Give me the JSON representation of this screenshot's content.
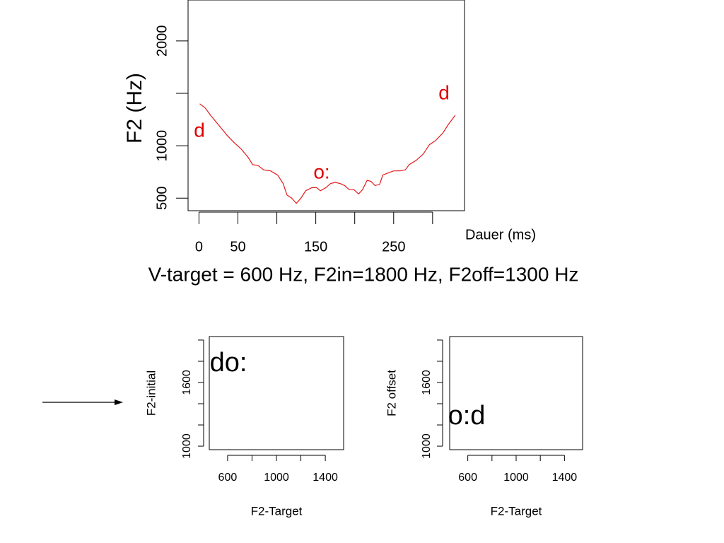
{
  "chart_data": [
    {
      "type": "line",
      "ylabel": "F2 (Hz)",
      "xlabel": "Dauer (ms)",
      "caption": "V-target = 600 Hz, F2in=1800 Hz, F2off=1300 Hz",
      "xlim": [
        -14,
        341
      ],
      "ylim": [
        380,
        2390
      ],
      "xticks": [
        0,
        50,
        {
          "value": 100,
          "label": null
        },
        150,
        {
          "value": 200,
          "label": null
        },
        250,
        {
          "value": 300,
          "label": null
        }
      ],
      "yticks": [
        500,
        1000,
        {
          "value": 1500,
          "label": null
        },
        2000
      ],
      "x": [
        1,
        8,
        15,
        26,
        36,
        45,
        54,
        63,
        69,
        76,
        83,
        92,
        101,
        108,
        113,
        119,
        125,
        131,
        137,
        145,
        151,
        156,
        163,
        169,
        175,
        181,
        187,
        193,
        199,
        205,
        210,
        216,
        221,
        226,
        232,
        236,
        243,
        250,
        258,
        265,
        270,
        279,
        288,
        296,
        304,
        313,
        320,
        329
      ],
      "series": [
        {
          "color": "#e31a1c",
          "values": [
            1400,
            1360,
            1290,
            1190,
            1100,
            1030,
            970,
            890,
            820,
            810,
            770,
            760,
            720,
            640,
            530,
            500,
            450,
            500,
            570,
            600,
            600,
            570,
            600,
            640,
            650,
            640,
            620,
            580,
            580,
            540,
            580,
            670,
            660,
            620,
            630,
            720,
            740,
            760,
            760,
            770,
            820,
            860,
            920,
            1010,
            1050,
            1120,
            1200,
            1290
          ]
        }
      ],
      "annotation_color": "#e00000",
      "annotations": [
        "d",
        "d",
        "o:"
      ]
    },
    {
      "type": "scatter",
      "xlabel": "F2-Target",
      "ylabel": "F2-initial",
      "xlim": [
        450,
        1550
      ],
      "ylim": [
        967,
        2033
      ],
      "xticks": [
        600,
        {
          "value": 800,
          "label": null
        },
        1000,
        {
          "value": 1200,
          "label": null
        },
        1400
      ],
      "yticks": [
        1000,
        {
          "value": 1200,
          "label": null
        },
        {
          "value": 1400,
          "label": null
        },
        1600,
        {
          "value": 1800,
          "label": null
        },
        {
          "value": 2000,
          "label": null
        }
      ],
      "annotation_color": "#000000",
      "annotations": [
        "do:"
      ]
    },
    {
      "type": "scatter",
      "xlabel": "F2-Target",
      "ylabel": "F2 offset",
      "xlim": [
        450,
        1550
      ],
      "ylim": [
        967,
        2033
      ],
      "xticks": [
        600,
        {
          "value": 800,
          "label": null
        },
        1000,
        {
          "value": 1200,
          "label": null
        },
        1400
      ],
      "yticks": [
        1000,
        {
          "value": 1200,
          "label": null
        },
        {
          "value": 1400,
          "label": null
        },
        1600,
        {
          "value": 1800,
          "label": null
        },
        {
          "value": 2000,
          "label": null
        }
      ],
      "annotation_color": "#000000",
      "annotations": [
        "o:d"
      ]
    }
  ]
}
